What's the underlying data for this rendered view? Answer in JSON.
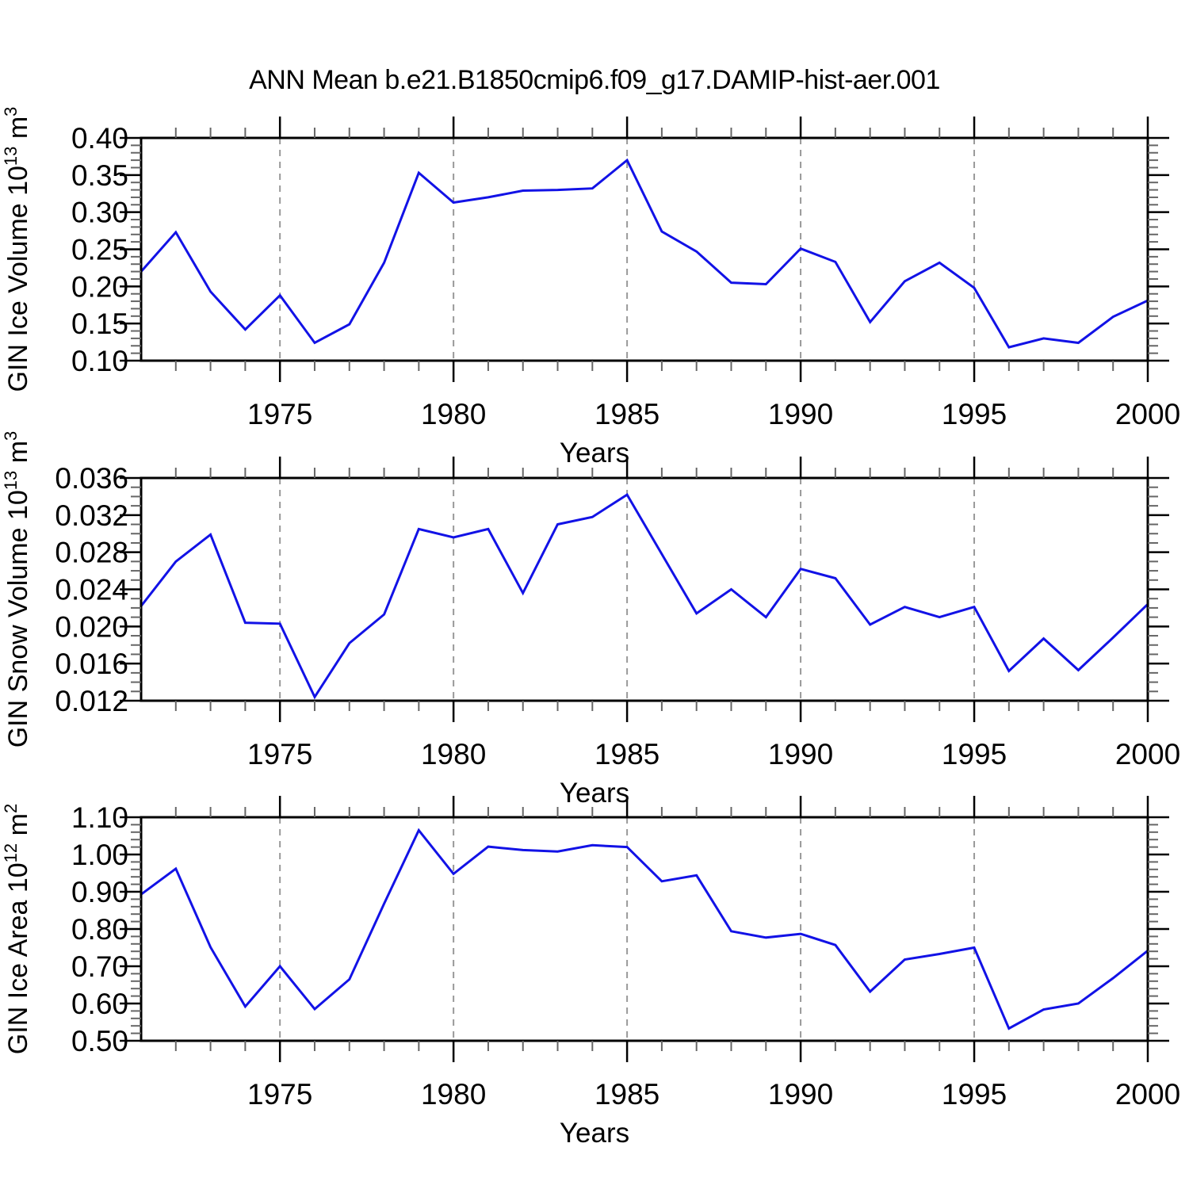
{
  "title": "ANN Mean b.e21.B1850cmip6.f09_g17.DAMIP-hist-aer.001",
  "colors": {
    "line": "#1212e6",
    "axis": "#000000",
    "minor_tick": "#666666",
    "grid": "#999999",
    "background": "#ffffff",
    "text": "#000000"
  },
  "x_axis": {
    "label": "Years",
    "start": 1971,
    "end": 2000,
    "major_tick_years": [
      1975,
      1980,
      1985,
      1990,
      1995,
      2000
    ],
    "major_tick_labels": [
      "1975",
      "1980",
      "1985",
      "1990",
      "1995",
      "2000"
    ],
    "minor_step_years": 1,
    "gridline_years": [
      1975,
      1980,
      1985,
      1990,
      1995
    ]
  },
  "chart_data": [
    {
      "type": "line",
      "id": "ice-volume",
      "ylabel_text": "GIN Ice Volume 10^13 m^3",
      "ylabel_parts": [
        {
          "t": "GIN Ice Volume 10"
        },
        {
          "t": "13",
          "sup": true
        },
        {
          "t": " m"
        },
        {
          "t": "3",
          "sup": true
        }
      ],
      "xlabel": "Years",
      "ylim": [
        0.1,
        0.4
      ],
      "ytick_values": [
        0.1,
        0.15,
        0.2,
        0.25,
        0.3,
        0.35,
        0.4
      ],
      "ytick_labels": [
        "0.10",
        "0.15",
        "0.20",
        "0.25",
        "0.30",
        "0.35",
        "0.40"
      ],
      "y_minor_step": 0.01,
      "x": [
        1971,
        1972,
        1973,
        1974,
        1975,
        1976,
        1977,
        1978,
        1979,
        1980,
        1981,
        1982,
        1983,
        1984,
        1985,
        1986,
        1987,
        1988,
        1989,
        1990,
        1991,
        1992,
        1993,
        1994,
        1995,
        1996,
        1997,
        1998,
        1999,
        2000
      ],
      "values": [
        0.22,
        0.273,
        0.193,
        0.142,
        0.188,
        0.124,
        0.149,
        0.232,
        0.353,
        0.313,
        0.32,
        0.329,
        0.33,
        0.332,
        0.37,
        0.274,
        0.247,
        0.205,
        0.203,
        0.251,
        0.233,
        0.152,
        0.207,
        0.232,
        0.198,
        0.118,
        0.13,
        0.124,
        0.159,
        0.181
      ]
    },
    {
      "type": "line",
      "id": "snow-volume",
      "ylabel_text": "GIN Snow Volume 10^13 m^3",
      "ylabel_parts": [
        {
          "t": "GIN Snow Volume 10"
        },
        {
          "t": "13",
          "sup": true
        },
        {
          "t": " m"
        },
        {
          "t": "3",
          "sup": true
        }
      ],
      "xlabel": "Years",
      "ylim": [
        0.012,
        0.036
      ],
      "ytick_values": [
        0.012,
        0.016,
        0.02,
        0.024,
        0.028,
        0.032,
        0.036
      ],
      "ytick_labels": [
        "0.012",
        "0.016",
        "0.020",
        "0.024",
        "0.028",
        "0.032",
        "0.036"
      ],
      "y_minor_step": 0.001,
      "x": [
        1971,
        1972,
        1973,
        1974,
        1975,
        1976,
        1977,
        1978,
        1979,
        1980,
        1981,
        1982,
        1983,
        1984,
        1985,
        1986,
        1987,
        1988,
        1989,
        1990,
        1991,
        1992,
        1993,
        1994,
        1995,
        1996,
        1997,
        1998,
        1999,
        2000
      ],
      "values": [
        0.0222,
        0.027,
        0.0299,
        0.0204,
        0.0203,
        0.0124,
        0.0182,
        0.0213,
        0.0305,
        0.0296,
        0.0305,
        0.0236,
        0.031,
        0.0318,
        0.0342,
        0.0278,
        0.0214,
        0.024,
        0.021,
        0.0262,
        0.0252,
        0.0202,
        0.0221,
        0.021,
        0.0221,
        0.0152,
        0.0187,
        0.0153,
        0.0188,
        0.0224
      ]
    },
    {
      "type": "line",
      "id": "ice-area",
      "ylabel_text": "GIN Ice Area 10^12 m^2",
      "ylabel_parts": [
        {
          "t": "GIN Ice Area 10"
        },
        {
          "t": "12",
          "sup": true
        },
        {
          "t": " m"
        },
        {
          "t": "2",
          "sup": true
        }
      ],
      "xlabel": "Years",
      "ylim": [
        0.5,
        1.1
      ],
      "ytick_values": [
        0.5,
        0.6,
        0.7,
        0.8,
        0.9,
        1.0,
        1.1
      ],
      "ytick_labels": [
        "0.50",
        "0.60",
        "0.70",
        "0.80",
        "0.90",
        "1.00",
        "1.10"
      ],
      "y_minor_step": 0.02,
      "x": [
        1971,
        1972,
        1973,
        1974,
        1975,
        1976,
        1977,
        1978,
        1979,
        1980,
        1981,
        1982,
        1983,
        1984,
        1985,
        1986,
        1987,
        1988,
        1989,
        1990,
        1991,
        1992,
        1993,
        1994,
        1995,
        1996,
        1997,
        1998,
        1999,
        2000
      ],
      "values": [
        0.893,
        0.962,
        0.751,
        0.592,
        0.7,
        0.585,
        0.665,
        0.868,
        1.065,
        0.948,
        1.021,
        1.012,
        1.008,
        1.025,
        1.02,
        0.928,
        0.944,
        0.794,
        0.777,
        0.787,
        0.757,
        0.632,
        0.718,
        0.733,
        0.75,
        0.533,
        0.584,
        0.6,
        0.668,
        0.742
      ]
    }
  ]
}
